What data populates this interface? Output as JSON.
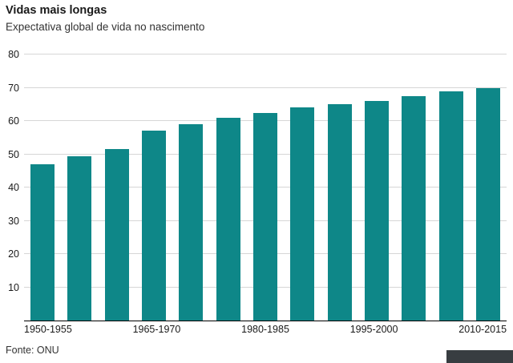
{
  "chart": {
    "title": "Vidas mais longas",
    "subtitle": "Expectativa global de vida no nascimento",
    "source": "Fonte: ONU"
  },
  "chart_data": {
    "type": "bar",
    "title": "Vidas mais longas",
    "subtitle": "Expectativa global de vida no nascimento",
    "source": "Fonte: ONU",
    "categories": [
      "1950-1955",
      "1955-1960",
      "1960-1965",
      "1965-1970",
      "1970-1975",
      "1975-1980",
      "1980-1985",
      "1985-1990",
      "1990-1995",
      "1995-2000",
      "2000-2005",
      "2005-2010",
      "2010-2015"
    ],
    "values": [
      47,
      49.5,
      51.5,
      57,
      59,
      61,
      62.5,
      64,
      65,
      66,
      67.5,
      69,
      70
    ],
    "x_tick_labels": [
      "1950-1955",
      "",
      "",
      "1965-1970",
      "",
      "",
      "1980-1985",
      "",
      "",
      "1995-2000",
      "",
      "",
      "2010-2015"
    ],
    "y_ticks": [
      10,
      20,
      30,
      40,
      50,
      60,
      70,
      80
    ],
    "ylim": [
      0,
      80
    ],
    "xlabel": "",
    "ylabel": "",
    "grid": "horizontal",
    "legend": "none",
    "bar_color": "#0e8788",
    "gridline_color": "#d6d6d6",
    "baseline_color": "#000000"
  }
}
